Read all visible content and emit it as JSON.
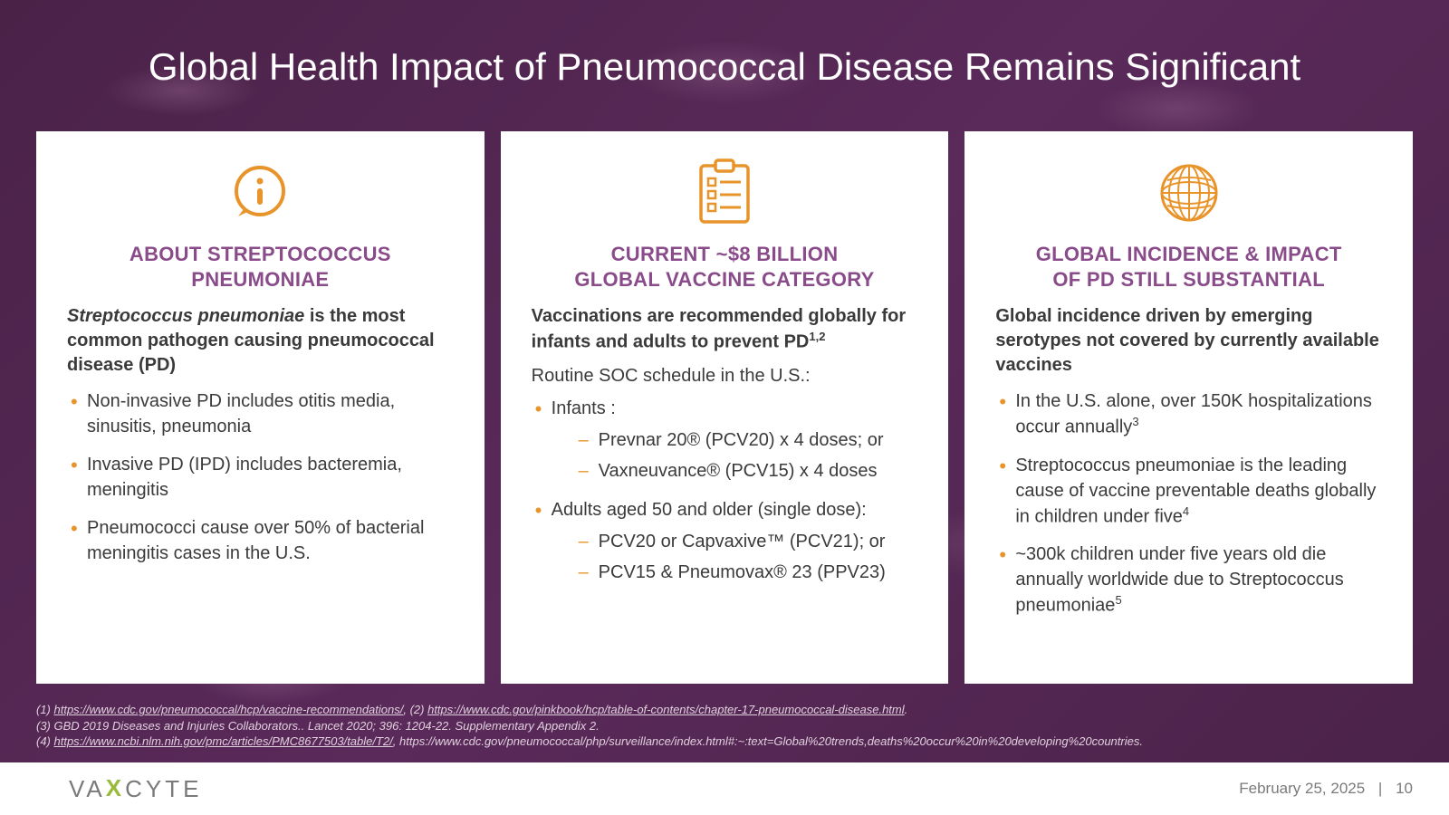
{
  "colors": {
    "background_base": "#5a2a5a",
    "card_bg": "#ffffff",
    "title_color": "#ffffff",
    "heading_color": "#8a4b8a",
    "body_text": "#3a3a3a",
    "bullet_color": "#e8942a",
    "icon_stroke": "#e8942a",
    "footnote_color": "#e0d0de",
    "footer_bg": "#ffffff",
    "footer_text": "#7a7a7a",
    "logo_accent": "#9aba3a"
  },
  "typography": {
    "title_fontsize": 42,
    "heading_fontsize": 22,
    "lead_fontsize": 20,
    "body_fontsize": 20,
    "footnote_fontsize": 13,
    "footer_fontsize": 17
  },
  "title": "Global Health Impact of Pneumococcal Disease Remains Significant",
  "cards": [
    {
      "icon": "info",
      "heading_l1": "ABOUT STREPTOCOCCUS",
      "heading_l2": "PNEUMONIAE",
      "lead_em": "Streptococcus pneumoniae",
      "lead_rest": " is the most common pathogen causing pneumococcal disease (PD)",
      "bullets": [
        "Non-invasive PD includes otitis media, sinusitis, pneumonia",
        "Invasive PD (IPD) includes bacteremia, meningitis",
        "Pneumococci cause over 50% of bacterial meningitis cases in the U.S."
      ]
    },
    {
      "icon": "clipboard",
      "heading_l1": "CURRENT ~$8 BILLION",
      "heading_l2": "GLOBAL VACCINE CATEGORY",
      "lead_html": "Vaccinations are recommended globally for infants and adults to prevent PD<sup>1,2</sup>",
      "sub": "Routine SOC schedule in the U.S.:",
      "items": [
        {
          "label": "Infants :",
          "sub": [
            "Prevnar 20® (PCV20) x 4 doses; or",
            "Vaxneuvance® (PCV15) x 4 doses"
          ]
        },
        {
          "label": "Adults aged 50 and older (single dose):",
          "sub": [
            "PCV20 or Capvaxive™ (PCV21); or",
            "PCV15 & Pneumovax® 23 (PPV23)"
          ]
        }
      ]
    },
    {
      "icon": "globe",
      "heading_l1": "GLOBAL INCIDENCE & IMPACT",
      "heading_l2": "OF PD STILL SUBSTANTIAL",
      "lead_plain": "Global incidence driven by emerging serotypes not covered by currently available vaccines",
      "bullets_html": [
        "In the U.S. alone, over 150K hospitalizations occur annually<sup>3</sup>",
        "Streptococcus pneumoniae is the leading cause of vaccine preventable deaths globally in children under five<sup>4</sup>",
        "~300k children under five years old die annually worldwide due to Streptococcus pneumoniae<sup>5</sup>"
      ]
    }
  ],
  "footnotes": {
    "line1_a": "(1)   ",
    "line1_link1": "https://www.cdc.gov/pneumococcal/hcp/vaccine-recommendations/",
    "line1_b": ", (2) ",
    "line1_link2": "https://www.cdc.gov/pinkbook/hcp/table-of-contents/chapter-17-pneumococcal-disease.html",
    "line1_c": ".",
    "line2": "(3) GBD 2019 Diseases and Injuries Collaborators.. Lancet 2020; 396: 1204-22. Supplementary Appendix 2.",
    "line3_a": "(4) ",
    "line3_link": "https://www.ncbi.nlm.nih.gov/pmc/articles/PMC8677503/table/T2/",
    "line3_b": ", https://www.cdc.gov/pneumococcal/php/surveillance/index.html#:~:text=Global%20trends,deaths%20occur%20in%20developing%20countries."
  },
  "footer": {
    "logo_pre": "VA",
    "logo_x": "X",
    "logo_post": "CYTE",
    "date": "February 25, 2025",
    "sep": "|",
    "page": "10"
  }
}
